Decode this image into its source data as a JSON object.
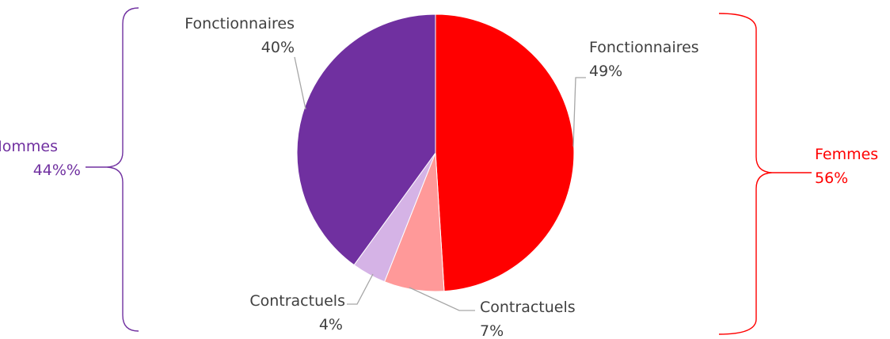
{
  "chart_data": {
    "type": "pie",
    "slices": [
      {
        "label": "Fonctionnaires",
        "percent_text": "49%",
        "value": 49,
        "color": "#ff0000"
      },
      {
        "label": "Contractuels",
        "percent_text": "7%",
        "value": 7,
        "color": "#ff9999"
      },
      {
        "label": "Contractuels",
        "percent_text": "4%",
        "value": 4,
        "color": "#d5b3e6"
      },
      {
        "label": "Fonctionnaires",
        "percent_text": "40%",
        "value": 40,
        "color": "#7030a0"
      }
    ],
    "groups": [
      {
        "name": "Hommes",
        "percent_text": "44%%",
        "color": "#7030a0"
      },
      {
        "name": "Femmes",
        "percent_text": "56%",
        "color": "#ff0000"
      }
    ],
    "leader_color": "#a6a6a6"
  }
}
